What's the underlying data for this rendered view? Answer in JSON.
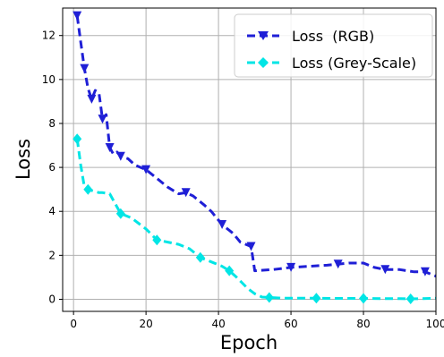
{
  "chart_data": {
    "type": "line",
    "xlabel": "Epoch",
    "ylabel": "Loss",
    "xlim": [
      -3,
      100
    ],
    "ylim": [
      -0.55,
      13.25
    ],
    "xticks": [
      0,
      20,
      40,
      60,
      80,
      100
    ],
    "yticks": [
      0,
      2,
      4,
      6,
      8,
      10,
      12
    ],
    "grid": true,
    "legend_position": "top-right",
    "series": [
      {
        "name": "Loss  (RGB)",
        "color": "#1f1fd6",
        "marker": "triangle-down",
        "x": [
          1,
          2,
          3,
          4,
          5,
          6,
          7,
          8,
          9,
          10,
          11,
          12,
          13,
          15,
          17,
          20,
          23,
          26,
          29,
          31,
          33,
          36,
          38,
          41,
          44,
          46,
          49,
          50,
          55,
          60,
          65,
          70,
          73,
          76,
          80,
          83,
          86,
          90,
          94,
          97,
          100
        ],
        "y": [
          12.9,
          11.7,
          10.5,
          9.6,
          9.1,
          9.5,
          9.4,
          8.2,
          8.4,
          6.9,
          6.6,
          6.7,
          6.5,
          6.4,
          6.1,
          5.9,
          5.5,
          5.1,
          4.8,
          4.85,
          4.7,
          4.3,
          4.0,
          3.4,
          3.0,
          2.6,
          2.4,
          1.3,
          1.35,
          1.45,
          1.5,
          1.55,
          1.6,
          1.65,
          1.65,
          1.45,
          1.35,
          1.35,
          1.25,
          1.25,
          1.05
        ],
        "marker_x": [
          1,
          3,
          5,
          8,
          10,
          13,
          20,
          31,
          41,
          49,
          60,
          73,
          86,
          97
        ]
      },
      {
        "name": "Loss (Grey-Scale)",
        "color": "#00e5e5",
        "marker": "diamond",
        "x": [
          1,
          2,
          3,
          4,
          5,
          6,
          7,
          8,
          10,
          13,
          16,
          20,
          23,
          26,
          29,
          32,
          35,
          38,
          41,
          43,
          45,
          48,
          50,
          52,
          54,
          58,
          62,
          67,
          72,
          80,
          85,
          90,
          93,
          96,
          100
        ],
        "y": [
          7.3,
          6.1,
          5.1,
          5.0,
          4.95,
          4.9,
          4.85,
          4.85,
          4.8,
          3.9,
          3.7,
          3.2,
          2.7,
          2.6,
          2.5,
          2.3,
          1.9,
          1.7,
          1.5,
          1.3,
          1.0,
          0.5,
          0.25,
          0.1,
          0.08,
          0.05,
          0.05,
          0.05,
          0.04,
          0.04,
          0.03,
          0.03,
          0.02,
          0.03,
          0.05
        ],
        "marker_x": [
          1,
          4,
          13,
          23,
          35,
          43,
          54,
          67,
          80,
          93
        ]
      }
    ]
  }
}
